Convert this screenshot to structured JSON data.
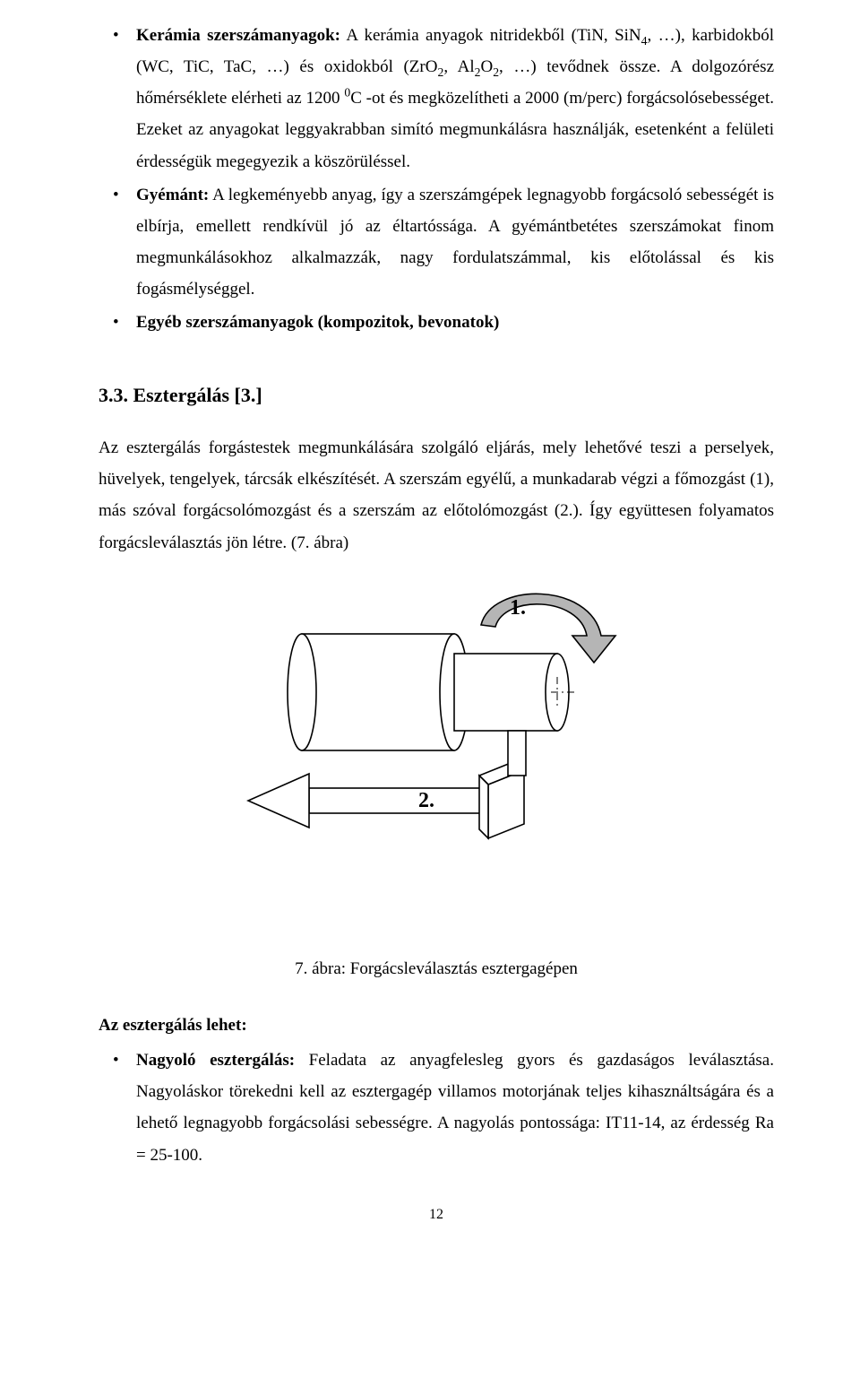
{
  "bullets_top": [
    {
      "bold_lead": "Kerámia szerszámanyagok:",
      "rest_html": " A kerámia anyagok nitridekből (TiN, SiN<span class='sub'>4</span>, …), karbidokból (WC, TiC, TaC, …) és oxidokból (ZrO<span class='sub'>2</span>, Al<span class='sub'>2</span>O<span class='sub'>2</span>, …) tevődnek össze. A dolgozórész hőmérséklete elérheti az 1200 <span class='sup'>0</span>C -ot és megközelítheti a 2000 (m/perc) forgácsolósebességet. Ezeket az anyagokat leggyakrabban simító megmunkálásra használják, esetenként a felületi érdességük megegyezik a köszörüléssel."
    },
    {
      "bold_lead": "Gyémánt:",
      "rest_html": " A legkeményebb anyag, így a szerszámgépek legnagyobb forgácsoló sebességét is elbírja, emellett rendkívül jó az éltartóssága. A gyémántbetétes szerszámokat finom megmunkálásokhoz alkalmazzák, nagy fordulatszámmal, kis előtolással és kis fogásmélységgel."
    },
    {
      "bold_lead": "Egyéb szerszámanyagok (kompozitok, bevonatok)",
      "rest_html": ""
    }
  ],
  "section_heading": "3.3. Esztergálás [3.]",
  "body_paragraph": "Az esztergálás forgástestek megmunkálására szolgáló eljárás, mely lehetővé teszi a perselyek, hüvelyek, tengelyek, tárcsák elkészítését. A szerszám egyélű, a munkadarab végzi a főmozgást (1), más szóval forgácsolómozgást és a szerszám az előtolómozgást (2.). Így együttesen folyamatos forgácsleválasztás jön létre. (7. ábra)",
  "figure": {
    "label_rotation": "1.",
    "label_feed": "2.",
    "stroke": "#000000",
    "fill_bg": "#ffffff",
    "arrow_fill": "#b5b5b5"
  },
  "caption": "7. ábra: Forgácsleválasztás esztergagépen",
  "subhead": "Az esztergálás lehet:",
  "bullets_bottom": [
    {
      "bold_lead": "Nagyoló esztergálás:",
      "rest_html": " Feladata az anyagfelesleg gyors és gazdaságos leválasztása. Nagyoláskor törekedni kell az esztergagép villamos motorjának teljes kihasználtságára és a lehető legnagyobb forgácsolási sebességre. A nagyolás pontossága: IT11-14, az érdesség Ra = 25-100."
    }
  ],
  "page_number": "12"
}
